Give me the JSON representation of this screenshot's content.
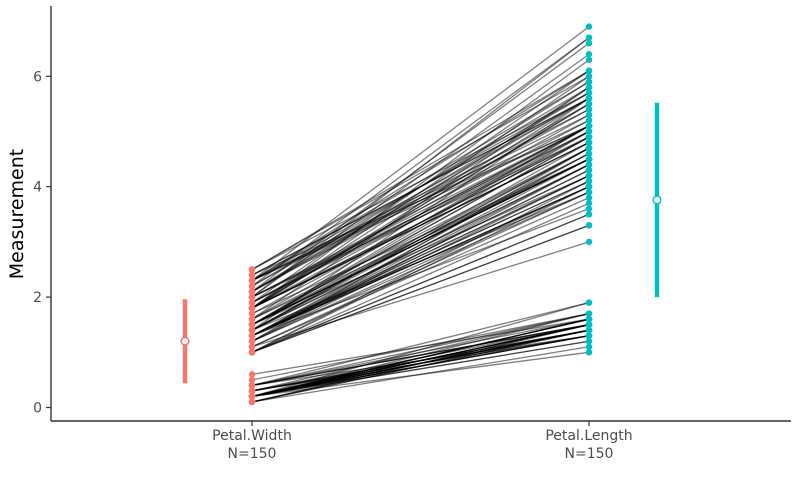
{
  "chart_data": {
    "type": "paired-points",
    "ylabel": "Measurement",
    "xlabel": "",
    "ylim": [
      -0.25,
      7.2
    ],
    "yticks": [
      0,
      2,
      4,
      6
    ],
    "grid": false,
    "legend": "none",
    "categories": [
      {
        "name": "Petal.Width",
        "n_label": "N=150",
        "color": "#F8766D"
      },
      {
        "name": "Petal.Length",
        "n_label": "N=150",
        "color": "#00BFC4"
      }
    ],
    "summary": [
      {
        "category": "Petal.Width",
        "mean": 1.2,
        "low": 0.44,
        "high": 1.96
      },
      {
        "category": "Petal.Length",
        "mean": 3.76,
        "low": 2.0,
        "high": 5.52
      }
    ],
    "pairs": [
      [
        0.2,
        1.4
      ],
      [
        0.2,
        1.4
      ],
      [
        0.2,
        1.3
      ],
      [
        0.2,
        1.5
      ],
      [
        0.2,
        1.4
      ],
      [
        0.4,
        1.7
      ],
      [
        0.3,
        1.4
      ],
      [
        0.2,
        1.5
      ],
      [
        0.2,
        1.4
      ],
      [
        0.1,
        1.5
      ],
      [
        0.2,
        1.5
      ],
      [
        0.2,
        1.6
      ],
      [
        0.1,
        1.4
      ],
      [
        0.1,
        1.1
      ],
      [
        0.2,
        1.2
      ],
      [
        0.4,
        1.5
      ],
      [
        0.4,
        1.3
      ],
      [
        0.3,
        1.4
      ],
      [
        0.3,
        1.7
      ],
      [
        0.3,
        1.5
      ],
      [
        0.2,
        1.7
      ],
      [
        0.4,
        1.5
      ],
      [
        0.2,
        1.0
      ],
      [
        0.5,
        1.7
      ],
      [
        0.2,
        1.9
      ],
      [
        0.2,
        1.6
      ],
      [
        0.4,
        1.6
      ],
      [
        0.2,
        1.5
      ],
      [
        0.2,
        1.4
      ],
      [
        0.2,
        1.6
      ],
      [
        0.2,
        1.6
      ],
      [
        0.4,
        1.5
      ],
      [
        0.1,
        1.5
      ],
      [
        0.2,
        1.4
      ],
      [
        0.2,
        1.5
      ],
      [
        0.2,
        1.2
      ],
      [
        0.2,
        1.3
      ],
      [
        0.1,
        1.4
      ],
      [
        0.2,
        1.3
      ],
      [
        0.2,
        1.5
      ],
      [
        0.3,
        1.3
      ],
      [
        0.3,
        1.3
      ],
      [
        0.2,
        1.3
      ],
      [
        0.6,
        1.6
      ],
      [
        0.4,
        1.9
      ],
      [
        0.3,
        1.4
      ],
      [
        0.2,
        1.6
      ],
      [
        0.2,
        1.4
      ],
      [
        0.2,
        1.5
      ],
      [
        0.2,
        1.4
      ],
      [
        1.4,
        4.7
      ],
      [
        1.5,
        4.5
      ],
      [
        1.5,
        4.9
      ],
      [
        1.3,
        4.0
      ],
      [
        1.5,
        4.6
      ],
      [
        1.3,
        4.5
      ],
      [
        1.6,
        4.7
      ],
      [
        1.0,
        3.3
      ],
      [
        1.3,
        4.6
      ],
      [
        1.4,
        3.9
      ],
      [
        1.0,
        3.5
      ],
      [
        1.5,
        4.2
      ],
      [
        1.0,
        4.0
      ],
      [
        1.4,
        4.7
      ],
      [
        1.3,
        3.6
      ],
      [
        1.4,
        4.4
      ],
      [
        1.5,
        4.5
      ],
      [
        1.0,
        4.1
      ],
      [
        1.5,
        4.5
      ],
      [
        1.1,
        3.9
      ],
      [
        1.8,
        4.8
      ],
      [
        1.3,
        4.0
      ],
      [
        1.5,
        4.9
      ],
      [
        1.2,
        4.7
      ],
      [
        1.3,
        4.3
      ],
      [
        1.4,
        4.4
      ],
      [
        1.4,
        4.8
      ],
      [
        1.7,
        5.0
      ],
      [
        1.5,
        4.5
      ],
      [
        1.0,
        3.5
      ],
      [
        1.1,
        3.8
      ],
      [
        1.0,
        3.7
      ],
      [
        1.2,
        3.9
      ],
      [
        1.6,
        5.1
      ],
      [
        1.5,
        4.5
      ],
      [
        1.6,
        4.5
      ],
      [
        1.5,
        4.7
      ],
      [
        1.3,
        4.4
      ],
      [
        1.3,
        4.1
      ],
      [
        1.3,
        4.0
      ],
      [
        1.2,
        4.4
      ],
      [
        1.4,
        4.6
      ],
      [
        1.2,
        4.0
      ],
      [
        1.0,
        3.3
      ],
      [
        1.3,
        4.2
      ],
      [
        1.2,
        4.2
      ],
      [
        1.3,
        4.2
      ],
      [
        1.3,
        4.3
      ],
      [
        1.1,
        3.0
      ],
      [
        1.3,
        4.1
      ],
      [
        2.5,
        6.0
      ],
      [
        1.9,
        5.1
      ],
      [
        2.1,
        5.9
      ],
      [
        1.8,
        5.6
      ],
      [
        2.2,
        5.8
      ],
      [
        2.1,
        6.6
      ],
      [
        1.7,
        4.5
      ],
      [
        1.8,
        6.3
      ],
      [
        1.8,
        5.8
      ],
      [
        2.5,
        6.1
      ],
      [
        2.0,
        5.1
      ],
      [
        1.9,
        5.3
      ],
      [
        2.1,
        5.5
      ],
      [
        2.0,
        5.0
      ],
      [
        2.4,
        5.1
      ],
      [
        2.3,
        5.3
      ],
      [
        1.8,
        5.5
      ],
      [
        2.2,
        6.7
      ],
      [
        2.3,
        6.9
      ],
      [
        1.5,
        5.0
      ],
      [
        2.3,
        5.7
      ],
      [
        2.0,
        4.9
      ],
      [
        2.0,
        6.7
      ],
      [
        1.8,
        4.9
      ],
      [
        2.1,
        5.7
      ],
      [
        1.8,
        6.0
      ],
      [
        1.8,
        4.8
      ],
      [
        1.8,
        4.9
      ],
      [
        2.1,
        5.6
      ],
      [
        1.6,
        5.8
      ],
      [
        1.9,
        6.1
      ],
      [
        2.0,
        6.4
      ],
      [
        2.2,
        5.6
      ],
      [
        1.5,
        5.1
      ],
      [
        1.4,
        5.6
      ],
      [
        2.3,
        6.1
      ],
      [
        2.4,
        5.6
      ],
      [
        1.8,
        5.5
      ],
      [
        1.8,
        4.8
      ],
      [
        2.1,
        5.4
      ],
      [
        2.4,
        5.6
      ],
      [
        2.3,
        5.1
      ],
      [
        1.9,
        5.1
      ],
      [
        2.3,
        5.9
      ],
      [
        2.5,
        5.7
      ],
      [
        2.3,
        5.2
      ],
      [
        1.9,
        5.0
      ],
      [
        2.0,
        5.2
      ],
      [
        2.3,
        5.4
      ],
      [
        1.8,
        5.1
      ]
    ]
  }
}
